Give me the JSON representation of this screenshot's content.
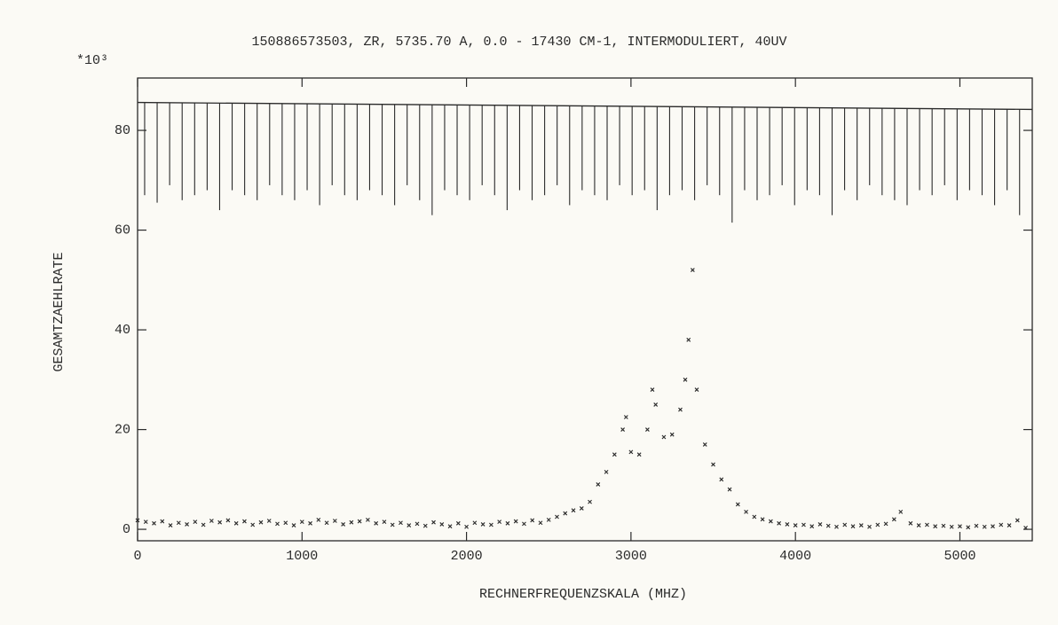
{
  "chart_data": {
    "type": "scatter",
    "title": "150886573503, ZR, 5735.70 A, 0.0 - 17430 CM-1, INTERMODULIERT, 40UV",
    "y_multiplier": "*10³",
    "ylabel": "GESAMTZAEHLRATE",
    "xlabel": "RECHNERFREQUENZSKALA (MHZ)",
    "xlim": [
      0,
      5440
    ],
    "ylim": [
      -2.3,
      90.5
    ],
    "xticks": [
      0,
      1000,
      2000,
      3000,
      4000,
      5000
    ],
    "yticks": [
      0,
      20,
      40,
      60,
      80
    ],
    "series": [
      {
        "style": "line",
        "color": "#2a2a2a",
        "x": [
          0,
          5440
        ],
        "values": [
          85.6,
          84.2
        ]
      },
      {
        "style": "comb",
        "color": "#2a2a2a",
        "x": [
          43,
          119,
          195,
          271,
          347,
          423,
          499,
          575,
          651,
          727,
          803,
          879,
          955,
          1031,
          1107,
          1183,
          1259,
          1335,
          1411,
          1487,
          1563,
          1639,
          1715,
          1791,
          1867,
          1943,
          2019,
          2095,
          2171,
          2247,
          2323,
          2399,
          2475,
          2551,
          2627,
          2703,
          2779,
          2855,
          2931,
          3007,
          3083,
          3159,
          3235,
          3311,
          3387,
          3463,
          3539,
          3615,
          3691,
          3767,
          3843,
          3919,
          3995,
          4071,
          4147,
          4223,
          4299,
          4375,
          4451,
          4527,
          4603,
          4679,
          4755,
          4831,
          4907,
          4983,
          5059,
          5135,
          5211,
          5287,
          5363
        ],
        "values": [
          67,
          65.5,
          69,
          66,
          67,
          68,
          64,
          68,
          67,
          66,
          69,
          67,
          66,
          68,
          65,
          69,
          67,
          66,
          68,
          67,
          65,
          69,
          66,
          63,
          68,
          67,
          66,
          69,
          67,
          64,
          68,
          66,
          67,
          69,
          65,
          68,
          67,
          66,
          69,
          67,
          68,
          64,
          67,
          68,
          66,
          69,
          67,
          61.5,
          68,
          66,
          67,
          69,
          65,
          68,
          67,
          63,
          68,
          66,
          69,
          67,
          66,
          65,
          68,
          67,
          69,
          66,
          68,
          67,
          65,
          68,
          63
        ]
      },
      {
        "style": "cross",
        "color": "#2a2a2a",
        "x": [
          0,
          50,
          100,
          150,
          200,
          250,
          300,
          350,
          400,
          450,
          500,
          550,
          600,
          650,
          700,
          750,
          800,
          850,
          900,
          950,
          1000,
          1050,
          1100,
          1150,
          1200,
          1250,
          1300,
          1350,
          1400,
          1450,
          1500,
          1550,
          1600,
          1650,
          1700,
          1750,
          1800,
          1850,
          1900,
          1950,
          2000,
          2050,
          2100,
          2150,
          2200,
          2250,
          2300,
          2350,
          2400,
          2450,
          2500,
          2550,
          2600,
          2650,
          2700,
          2750,
          2800,
          2850,
          2900,
          2950,
          2970,
          3000,
          3050,
          3100,
          3130,
          3150,
          3200,
          3250,
          3300,
          3330,
          3350,
          3375,
          3400,
          3450,
          3500,
          3550,
          3600,
          3650,
          3700,
          3750,
          3800,
          3850,
          3900,
          3950,
          4000,
          4050,
          4100,
          4150,
          4200,
          4250,
          4300,
          4350,
          4400,
          4450,
          4500,
          4550,
          4600,
          4640,
          4700,
          4750,
          4800,
          4850,
          4900,
          4950,
          5000,
          5050,
          5100,
          5150,
          5200,
          5250,
          5300,
          5350,
          5400
        ],
        "values": [
          1.8,
          1.5,
          1.2,
          1.6,
          0.8,
          1.3,
          1.0,
          1.5,
          0.9,
          1.7,
          1.4,
          1.8,
          1.2,
          1.6,
          0.9,
          1.4,
          1.7,
          1.1,
          1.3,
          0.8,
          1.5,
          1.2,
          1.9,
          1.3,
          1.7,
          1.0,
          1.4,
          1.6,
          1.9,
          1.2,
          1.5,
          0.9,
          1.3,
          0.8,
          1.1,
          0.7,
          1.4,
          1.0,
          0.6,
          1.2,
          0.5,
          1.3,
          1.0,
          0.9,
          1.5,
          1.2,
          1.6,
          1.1,
          1.8,
          1.3,
          1.9,
          2.5,
          3.2,
          3.8,
          4.2,
          5.5,
          9,
          11.5,
          15,
          20,
          22.5,
          15.5,
          15,
          20,
          28,
          25,
          18.5,
          19,
          24,
          30,
          38,
          52,
          28,
          17,
          13,
          10,
          8,
          5,
          3.5,
          2.5,
          2,
          1.6,
          1.2,
          1.0,
          0.8,
          0.9,
          0.6,
          1.0,
          0.7,
          0.5,
          0.9,
          0.6,
          0.8,
          0.5,
          0.9,
          1.1,
          2,
          3.5,
          1.2,
          0.8,
          0.9,
          0.6,
          0.7,
          0.5,
          0.6,
          0.4,
          0.7,
          0.5,
          0.6,
          0.9,
          0.8,
          1.8,
          0.3
        ]
      }
    ]
  }
}
